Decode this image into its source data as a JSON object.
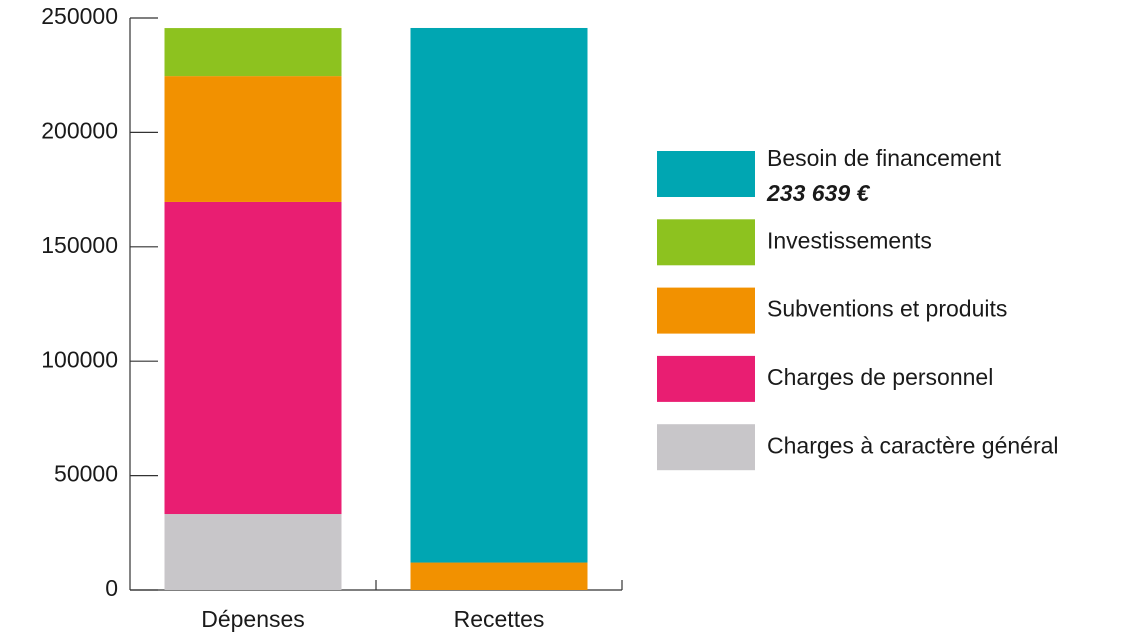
{
  "chart_data": {
    "type": "stacked_bar",
    "categories": [
      "Dépenses",
      "Recettes"
    ],
    "series": [
      {
        "name": "Charges à caractère général",
        "color": "#c8c6c9",
        "values": [
          33200,
          null
        ]
      },
      {
        "name": "Charges de personnel",
        "color": "#e91e72",
        "values": [
          136400,
          null
        ]
      },
      {
        "name": "Subventions et produits",
        "color": "#f29100",
        "values": [
          55000,
          12000
        ]
      },
      {
        "name": "Investissements",
        "color": "#8dc21f",
        "values": [
          21000,
          null
        ]
      },
      {
        "name": "Besoin de financement",
        "color": "#00a6b2",
        "values": [
          null,
          233639
        ],
        "value_labels": [
          null,
          "233 639 €"
        ]
      }
    ],
    "ylim": [
      0,
      250000
    ],
    "yticks": [
      0,
      50000,
      100000,
      150000,
      200000,
      250000
    ],
    "grid": false
  }
}
